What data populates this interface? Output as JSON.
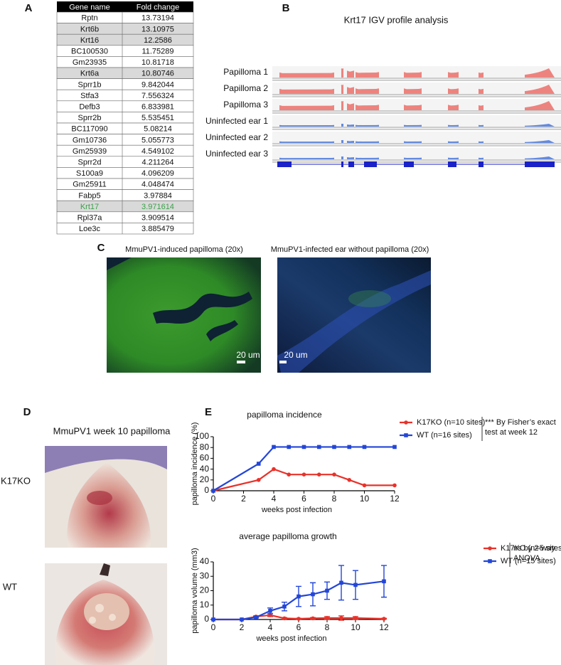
{
  "panel_labels": [
    "A",
    "B",
    "C",
    "D",
    "E"
  ],
  "table": {
    "header": [
      "Gene name",
      "Fold change"
    ],
    "rows": [
      [
        "Rptn",
        "13.73194"
      ],
      [
        "Krt6b",
        "13.10975"
      ],
      [
        "Krt16",
        "12.2586"
      ],
      [
        "BC100530",
        "11.75289"
      ],
      [
        "Gm23935",
        "10.81718"
      ],
      [
        "Krt6a",
        "10.80746"
      ],
      [
        "Sprr1b",
        "9.842044"
      ],
      [
        "Stfa3",
        "7.556324"
      ],
      [
        "Defb3",
        "6.833981"
      ],
      [
        "Sprr2b",
        "5.535451"
      ],
      [
        "BC117090",
        "5.08214"
      ],
      [
        "Gm10736",
        "5.055773"
      ],
      [
        "Gm25939",
        "4.549102"
      ],
      [
        "Sprr2d",
        "4.211264"
      ],
      [
        "S100a9",
        "4.096209"
      ],
      [
        "Gm25911",
        "4.048474"
      ],
      [
        "Fabp5",
        "3.97884"
      ],
      [
        "Krt17",
        "3.971614"
      ],
      [
        "Rpl37a",
        "3.909514"
      ],
      [
        "Loe3c",
        "3.885479"
      ]
    ],
    "shaded_rows": [
      1,
      2,
      5,
      17
    ],
    "shade_color": "#d9d9d9",
    "highlight_row": 17,
    "highlight_color": "#3aa14a"
  },
  "igv": {
    "title": "Krt17 IGV profile analysis",
    "tracks": [
      {
        "label": "Papilloma 1",
        "color": "#eb6f68"
      },
      {
        "label": "Papilloma 2",
        "color": "#eb6f68"
      },
      {
        "label": "Papilloma 3",
        "color": "#eb6f68"
      },
      {
        "label": "Uninfected ear 1",
        "color": "#3f6fd8"
      },
      {
        "label": "Uninfected ear 2",
        "color": "#3f6fd8"
      },
      {
        "label": "Uninfected ear 3",
        "color": "#3f6fd8"
      }
    ]
  },
  "microscopy": [
    {
      "caption": "MmuPV1-induced papilloma (20x)",
      "scale_bar": "20 um"
    },
    {
      "caption": "MmuPV1-infected ear without papilloma (20x)",
      "scale_bar": "20 um"
    }
  ],
  "photos": {
    "title": "MmuPV1 week 10 papilloma",
    "labels": [
      "K17KO",
      "WT"
    ]
  },
  "chart_data": [
    {
      "type": "line",
      "title": "papilloma incidence",
      "x_label": "weeks post infection",
      "y_label": "papilloma incidence (%)",
      "x": [
        0,
        3,
        4,
        5,
        6,
        7,
        8,
        9,
        10,
        12
      ],
      "xlim": [
        0,
        12
      ],
      "xticks": [
        0,
        2,
        4,
        6,
        8,
        10,
        12
      ],
      "ylim": [
        0,
        100
      ],
      "yticks": [
        0,
        20,
        40,
        60,
        80,
        100
      ],
      "series": [
        {
          "name": "K17KO (n=10 sites)",
          "color": "#e8322a",
          "marker": "circle",
          "values": [
            0,
            20,
            40,
            30,
            30,
            30,
            30,
            20,
            10,
            10
          ]
        },
        {
          "name": "WT (n=16 sites)",
          "color": "#2346d8",
          "marker": "square",
          "values": [
            0,
            50,
            81,
            81,
            81,
            81,
            81,
            81,
            81,
            81
          ]
        }
      ],
      "annotation": [
        "*** By Fisher’s exact",
        "test at week 12"
      ]
    },
    {
      "type": "line",
      "title": "average papilloma growth",
      "x_label": "weeks post infection",
      "y_label": "papilloma volume (mm3)",
      "x": [
        0,
        2,
        3,
        4,
        5,
        6,
        7,
        8,
        9,
        10,
        12
      ],
      "xlim": [
        0,
        12
      ],
      "xticks": [
        0,
        2,
        4,
        6,
        8,
        10,
        12
      ],
      "ylim": [
        0,
        40
      ],
      "yticks": [
        0,
        10,
        20,
        30,
        40
      ],
      "series": [
        {
          "name": "K17KO (n=5 sites)",
          "color": "#e8322a",
          "marker": "circle",
          "values": [
            0,
            0,
            2,
            3,
            0.8,
            0.5,
            0.8,
            1,
            1,
            1,
            0.5
          ],
          "errors": [
            0,
            0,
            0.5,
            1,
            0.5,
            0.3,
            0.5,
            1,
            1.5,
            1,
            0.3
          ]
        },
        {
          "name": "WT (n=15 sites)",
          "color": "#2346d8",
          "marker": "square",
          "values": [
            0,
            0,
            1.5,
            6,
            9,
            16,
            17.5,
            20,
            25.5,
            24,
            26.5
          ],
          "errors": [
            0,
            0,
            0.5,
            2,
            3,
            7,
            8,
            6,
            12,
            10,
            11
          ]
        }
      ],
      "annotation": [
        "ns by 2-way",
        "ANOVA"
      ]
    }
  ]
}
